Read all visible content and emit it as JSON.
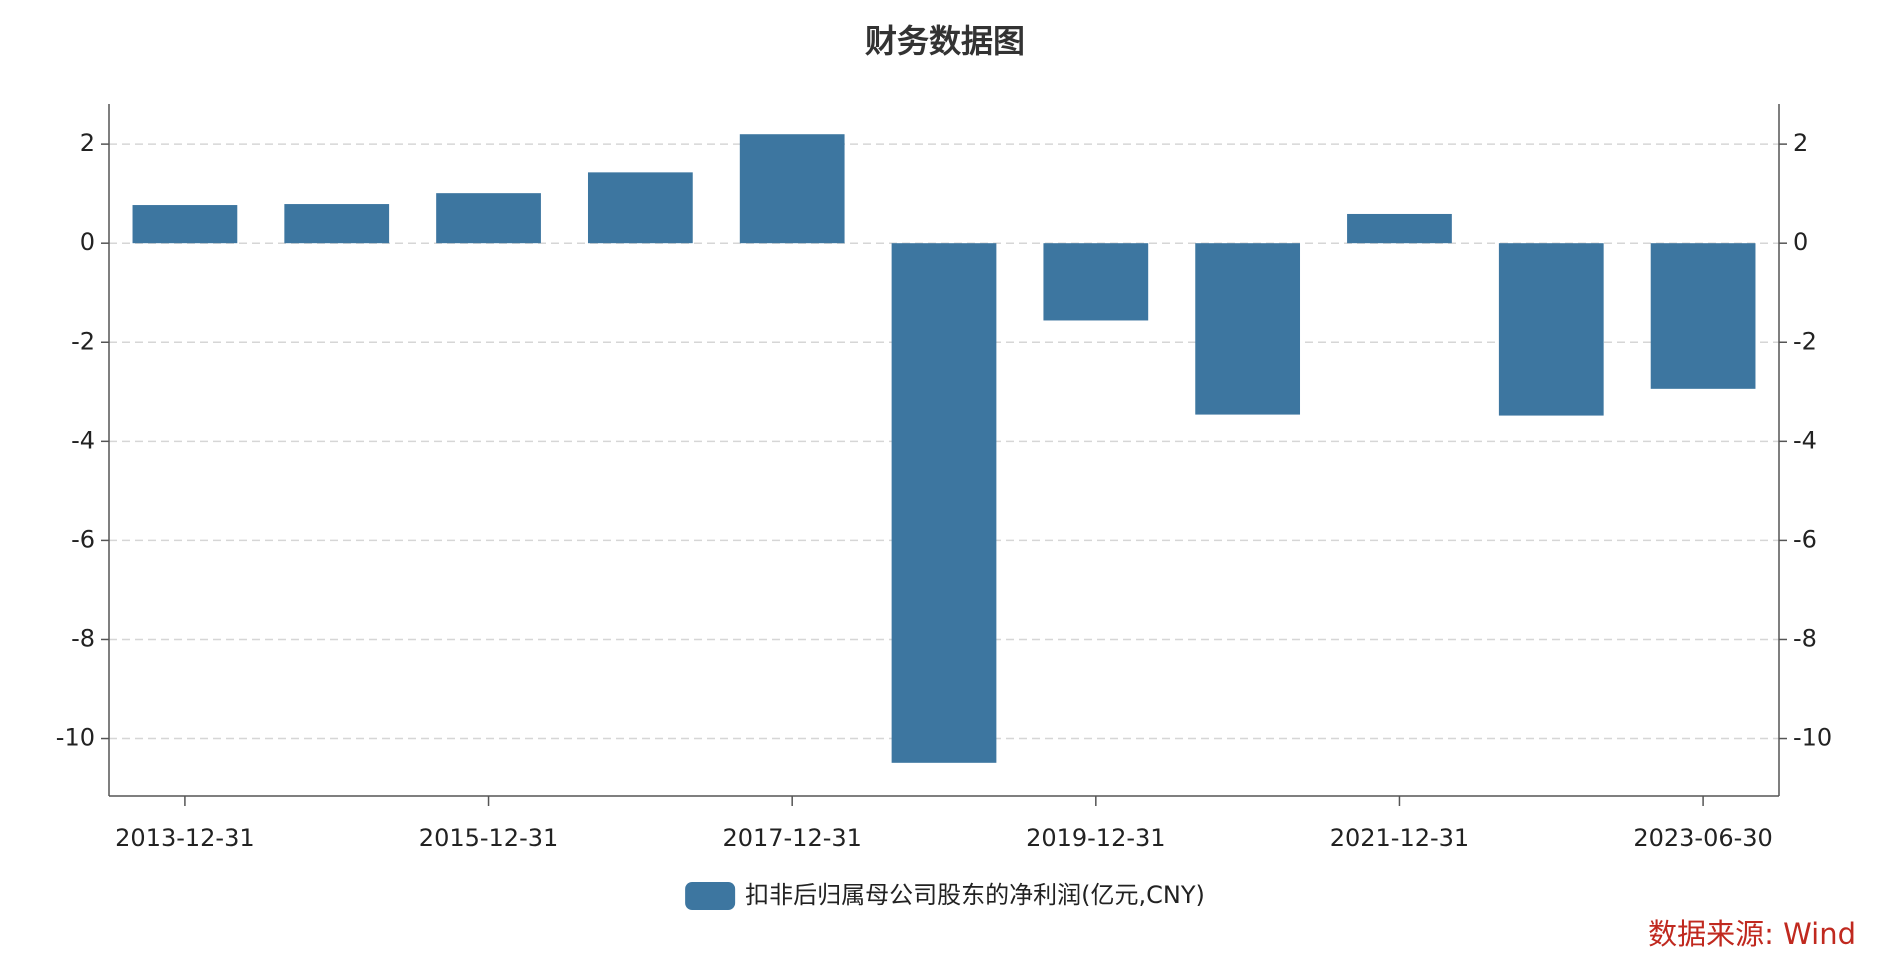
{
  "chart_data": {
    "type": "bar",
    "title": "财务数据图",
    "categories": [
      "2013-12-31",
      null,
      "2015-12-31",
      null,
      "2017-12-31",
      null,
      "2019-12-31",
      null,
      "2021-12-31",
      null,
      "2023-06-30"
    ],
    "series": [
      {
        "name": "扣非后归属母公司股东的净利润(亿元,CNY)",
        "color": "#3d76a0",
        "values": [
          0.77,
          0.79,
          1.01,
          1.43,
          2.2,
          -10.49,
          -1.56,
          -3.46,
          0.59,
          -3.48,
          -2.94
        ]
      }
    ],
    "ylim": [
      -11.16,
      2.81
    ],
    "yticks": [
      2,
      0,
      -2,
      -4,
      -6,
      -8,
      -10
    ],
    "grid": true,
    "legend": "bottom",
    "source": "数据来源: Wind"
  }
}
